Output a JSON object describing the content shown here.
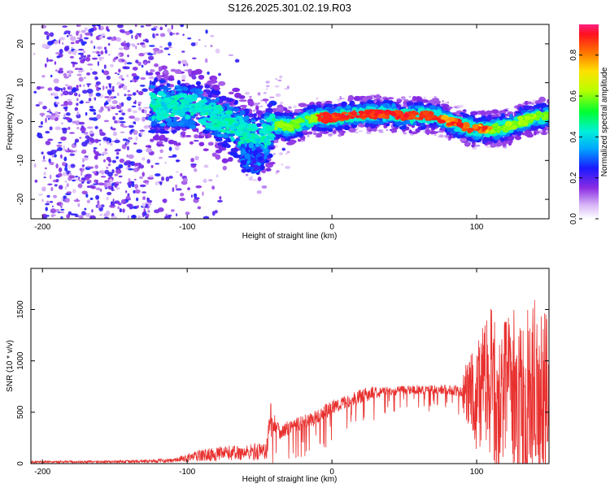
{
  "title": "S126.2025.301.02.19.R03",
  "chart_data": [
    {
      "type": "heatmap",
      "name": "spectrogram",
      "xlabel": "Height of straight line (km)",
      "ylabel": "Frequency (Hz)",
      "xlim": [
        -208,
        150
      ],
      "ylim": [
        -25,
        25
      ],
      "xticks": [
        -200,
        -100,
        0,
        100
      ],
      "yticks": [
        -20,
        -10,
        0,
        10,
        20
      ],
      "ridge": {
        "x": [
          -100,
          -90,
          -80,
          -70,
          -60,
          -55,
          -50,
          -45,
          -40,
          -35,
          -30,
          -20,
          -10,
          0,
          10,
          20,
          30,
          40,
          50,
          60,
          70,
          80,
          90,
          100,
          110,
          120,
          130,
          140,
          150
        ],
        "y": [
          4,
          3,
          1,
          -1,
          -3,
          -4,
          -6,
          -3,
          -1,
          -0.5,
          -1.5,
          0,
          1,
          1,
          1.5,
          2,
          2,
          2,
          1.5,
          1.5,
          1.5,
          0,
          -1,
          -2,
          -2,
          -1.5,
          0,
          1,
          1.5
        ]
      },
      "colorbar": {
        "label": "Normalized spectral amplitude",
        "range": [
          0,
          0.95
        ],
        "ticks": [
          "0.0",
          "0.2",
          "0.4",
          "0.6",
          "0.8"
        ],
        "tick_values": [
          0.0,
          0.2,
          0.4,
          0.6,
          0.8
        ]
      }
    },
    {
      "type": "line",
      "name": "snr",
      "xlabel": "Height of straight line (km)",
      "ylabel": "SNR (10 * v/v)",
      "xlim": [
        -208,
        150
      ],
      "ylim": [
        0,
        1900
      ],
      "xticks": [
        -200,
        -100,
        0,
        100
      ],
      "yticks": [
        0,
        500,
        1000,
        1500
      ],
      "color": "#e8312f",
      "envelope": {
        "x": [
          -208,
          -150,
          -110,
          -100,
          -90,
          -80,
          -70,
          -60,
          -50,
          -45,
          -42,
          -40,
          -35,
          -30,
          -20,
          -10,
          0,
          10,
          20,
          30,
          40,
          50,
          60,
          70,
          80,
          90,
          95,
          100,
          105,
          110,
          115,
          120,
          125,
          130,
          135,
          140,
          145,
          150
        ],
        "base": [
          5,
          5,
          10,
          15,
          20,
          25,
          30,
          30,
          30,
          35,
          350,
          400,
          300,
          350,
          400,
          450,
          550,
          600,
          650,
          700,
          700,
          720,
          720,
          720,
          720,
          700,
          800,
          700,
          800,
          900,
          600,
          800,
          700,
          800,
          700,
          900,
          700,
          900
        ],
        "spread": [
          20,
          25,
          40,
          80,
          120,
          130,
          150,
          150,
          180,
          200,
          350,
          300,
          250,
          250,
          250,
          250,
          250,
          200,
          250,
          200,
          150,
          150,
          150,
          150,
          150,
          200,
          500,
          700,
          800,
          900,
          900,
          1000,
          1100,
          1000,
          1100,
          1000,
          1100,
          1000
        ]
      }
    }
  ]
}
